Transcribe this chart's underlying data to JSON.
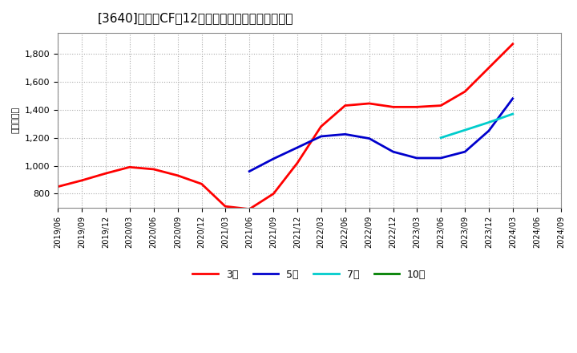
{
  "title": "[3640]　営業CFの12か月移動合計の平均値の推移",
  "ylabel": "（百万円）",
  "background_color": "#ffffff",
  "plot_bg_color": "#ffffff",
  "grid_color": "#aaaaaa",
  "ylim": [
    700,
    1950
  ],
  "yticks": [
    800,
    1000,
    1200,
    1400,
    1600,
    1800
  ],
  "series": {
    "3year": {
      "color": "#ff0000",
      "label": "3年",
      "dates": [
        "2019-06",
        "2019-09",
        "2019-12",
        "2020-03",
        "2020-06",
        "2020-09",
        "2020-12",
        "2021-03",
        "2021-06",
        "2021-09",
        "2021-12",
        "2022-03",
        "2022-06",
        "2022-09",
        "2022-12",
        "2023-03",
        "2023-06",
        "2023-09",
        "2023-12",
        "2024-03",
        "2024-06"
      ],
      "values": [
        850,
        895,
        945,
        990,
        975,
        930,
        870,
        710,
        690,
        800,
        1020,
        1280,
        1430,
        1445,
        1420,
        1420,
        1430,
        1530,
        1700,
        1870,
        null
      ]
    },
    "5year": {
      "color": "#0000cc",
      "label": "5年",
      "dates": [
        "2021-06",
        "2021-09",
        "2021-12",
        "2022-03",
        "2022-06",
        "2022-09",
        "2022-12",
        "2023-03",
        "2023-06",
        "2023-09",
        "2023-12",
        "2024-03",
        "2024-06"
      ],
      "values": [
        960,
        1050,
        1130,
        1210,
        1225,
        1195,
        1100,
        1055,
        1055,
        1100,
        1250,
        1480,
        null
      ]
    },
    "7year": {
      "color": "#00cccc",
      "label": "7年",
      "dates": [
        "2023-06",
        "2023-09",
        "2023-12",
        "2024-03",
        "2024-06"
      ],
      "values": [
        1200,
        1255,
        1310,
        1370,
        null
      ]
    },
    "10year": {
      "color": "#008000",
      "label": "10年",
      "dates": [
        "2024-03",
        "2024-06"
      ],
      "values": [
        null,
        null
      ]
    }
  },
  "xaxis_dates": [
    "2019/06",
    "2019/09",
    "2019/12",
    "2020/03",
    "2020/06",
    "2020/09",
    "2020/12",
    "2021/03",
    "2021/06",
    "2021/09",
    "2021/12",
    "2022/03",
    "2022/06",
    "2022/09",
    "2022/12",
    "2023/03",
    "2023/06",
    "2023/09",
    "2023/12",
    "2024/03",
    "2024/06",
    "2024/09"
  ],
  "legend_labels": [
    "3年",
    "5年",
    "7年",
    "10年"
  ],
  "legend_colors": [
    "#ff0000",
    "#0000cc",
    "#00cccc",
    "#008000"
  ]
}
